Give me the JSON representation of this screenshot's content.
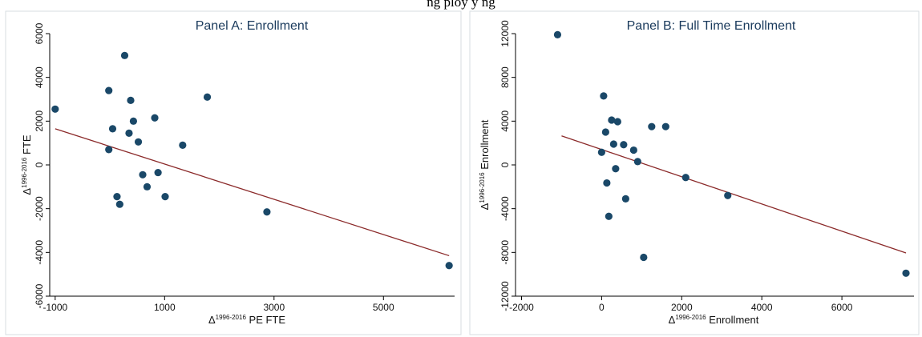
{
  "top_cut_text": "ng                                                                     ploy                                              y  ng",
  "chart_data": [
    {
      "type": "scatter",
      "title": "Panel A: Enrollment",
      "xlabel_sup": "1996-2016",
      "xlabel_rest": " PE FTE",
      "ylabel_sup": "1996-2016",
      "ylabel_rest": " FTE",
      "delta": "Δ",
      "xlim": [
        -1100,
        6300
      ],
      "ylim": [
        -6000,
        6000
      ],
      "xticks": [
        -1000,
        1000,
        3000,
        5000
      ],
      "yticks": [
        -6000,
        -4000,
        -2000,
        0,
        2000,
        4000,
        6000
      ],
      "grid": false,
      "points": [
        {
          "x": -1000,
          "y": 2550
        },
        {
          "x": -20,
          "y": 3400
        },
        {
          "x": 270,
          "y": 5000
        },
        {
          "x": 380,
          "y": 2950
        },
        {
          "x": 430,
          "y": 2000
        },
        {
          "x": 50,
          "y": 1650
        },
        {
          "x": 350,
          "y": 1450
        },
        {
          "x": 520,
          "y": 1050
        },
        {
          "x": 820,
          "y": 2150
        },
        {
          "x": 1780,
          "y": 3100
        },
        {
          "x": 1330,
          "y": 900
        },
        {
          "x": -20,
          "y": 700
        },
        {
          "x": 600,
          "y": -450
        },
        {
          "x": 880,
          "y": -350
        },
        {
          "x": 680,
          "y": -1000
        },
        {
          "x": 130,
          "y": -1450
        },
        {
          "x": 180,
          "y": -1800
        },
        {
          "x": 1010,
          "y": -1450
        },
        {
          "x": 2870,
          "y": -2150
        },
        {
          "x": 6200,
          "y": -4600
        }
      ],
      "fit": {
        "x": [
          -1000,
          6200
        ],
        "y": [
          1650,
          -4150
        ]
      },
      "point_color": "#1a4868",
      "line_color": "#8b2a2a",
      "title_color": "#1a3a5c"
    },
    {
      "type": "scatter",
      "title": "Panel B: Full Time Enrollment",
      "xlabel_sup": "1996-2016",
      "xlabel_rest": " Enrollment",
      "ylabel_sup": "1996-2016",
      "ylabel_rest": " Enrollment",
      "delta": "Δ",
      "xlim": [
        -2150,
        7800
      ],
      "ylim": [
        -12000,
        12000
      ],
      "xticks": [
        -2000,
        0,
        2000,
        4000,
        6000
      ],
      "yticks": [
        -12000,
        -8000,
        -4000,
        0,
        4000,
        8000,
        12000
      ],
      "grid": false,
      "points": [
        {
          "x": -1100,
          "y": 11900
        },
        {
          "x": 50,
          "y": 6300
        },
        {
          "x": 250,
          "y": 4100
        },
        {
          "x": 400,
          "y": 3950
        },
        {
          "x": 100,
          "y": 3000
        },
        {
          "x": 1250,
          "y": 3500
        },
        {
          "x": 1600,
          "y": 3500
        },
        {
          "x": 300,
          "y": 1900
        },
        {
          "x": 550,
          "y": 1850
        },
        {
          "x": 800,
          "y": 1350
        },
        {
          "x": 0,
          "y": 1150
        },
        {
          "x": 900,
          "y": 300
        },
        {
          "x": 350,
          "y": -350
        },
        {
          "x": 130,
          "y": -1650
        },
        {
          "x": 2100,
          "y": -1150
        },
        {
          "x": 600,
          "y": -3100
        },
        {
          "x": 3150,
          "y": -2800
        },
        {
          "x": 180,
          "y": -4700
        },
        {
          "x": 1050,
          "y": -8450
        },
        {
          "x": 7600,
          "y": -9900
        }
      ],
      "fit": {
        "x": [
          -1000,
          7600
        ],
        "y": [
          2650,
          -8050
        ]
      },
      "point_color": "#1a4868",
      "line_color": "#8b2a2a",
      "title_color": "#1a3a5c"
    }
  ]
}
